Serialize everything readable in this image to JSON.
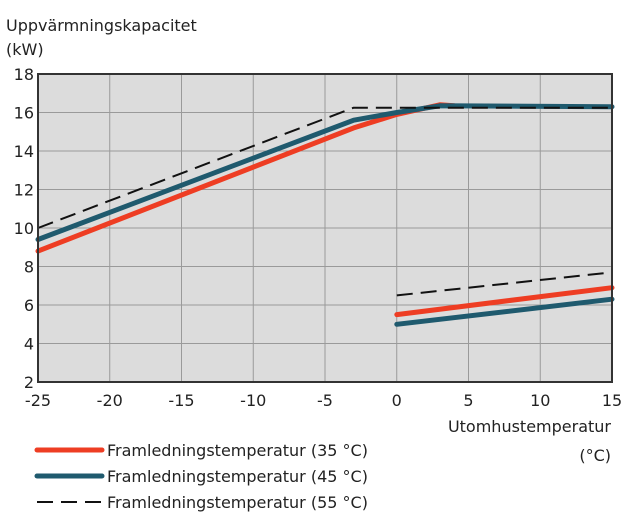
{
  "chart_data": {
    "type": "line",
    "ylabel_line1": "Uppvärmningskapacitet",
    "ylabel_line2": "(kW)",
    "xlabel_line1": "Utomhustemperatur",
    "xlabel_line2": "(°C)",
    "xlim": [
      -25,
      15
    ],
    "ylim": [
      2,
      18
    ],
    "x_ticks": [
      -25,
      -20,
      -15,
      -10,
      -5,
      0,
      5,
      10,
      15
    ],
    "y_ticks": [
      2,
      4,
      6,
      8,
      10,
      12,
      14,
      16,
      18
    ],
    "grid": true,
    "legend_position": "bottom-left",
    "series": [
      {
        "name": "Framledningstemperatur (35 °C)",
        "color": "#ee3d23",
        "style": "solid",
        "segments": [
          [
            [
              -25,
              8.8
            ],
            [
              -3,
              15.2
            ],
            [
              0,
              15.9
            ],
            [
              3,
              16.4
            ],
            [
              4,
              16.35
            ]
          ],
          [
            [
              0,
              5.5
            ],
            [
              15,
              6.9
            ]
          ]
        ]
      },
      {
        "name": "Framledningstemperatur (45 °C)",
        "color": "#1f5a6e",
        "style": "solid",
        "segments": [
          [
            [
              -25,
              9.4
            ],
            [
              -3,
              15.6
            ],
            [
              0,
              16.0
            ],
            [
              3,
              16.35
            ],
            [
              15,
              16.3
            ]
          ],
          [
            [
              0,
              5.0
            ],
            [
              15,
              6.3
            ]
          ]
        ]
      },
      {
        "name": "Framledningstemperatur (55 °C)",
        "color": "#111111",
        "style": "dashed",
        "segments": [
          [
            [
              -25,
              10.0
            ],
            [
              -3,
              16.25
            ],
            [
              15,
              16.25
            ]
          ],
          [
            [
              0,
              6.5
            ],
            [
              15,
              7.7
            ]
          ]
        ]
      }
    ]
  }
}
